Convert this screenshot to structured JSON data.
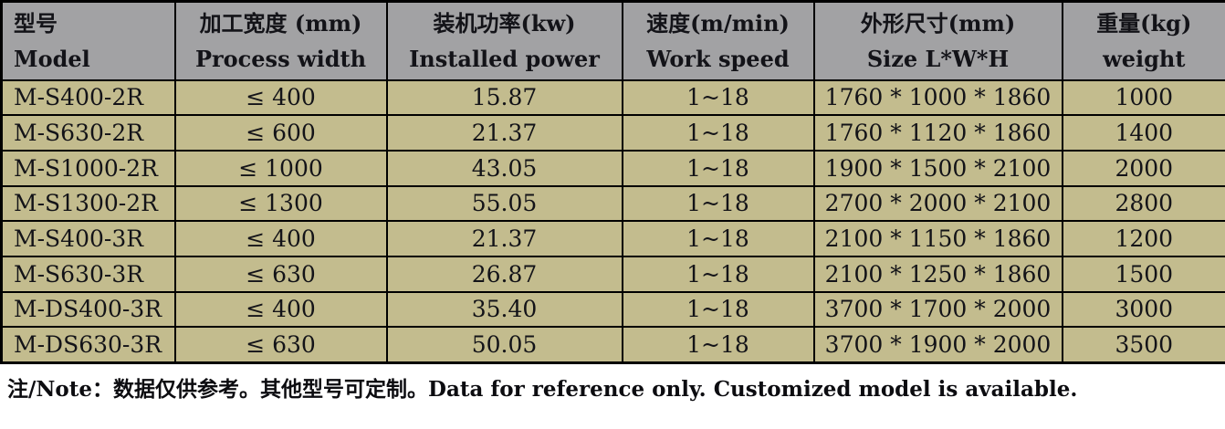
{
  "table": {
    "columns": [
      {
        "zh": "型号",
        "en": "Model"
      },
      {
        "zh": "加工宽度 (mm)",
        "en": "Process width"
      },
      {
        "zh": "装机功率(kw)",
        "en": "Installed power"
      },
      {
        "zh": "速度(m/min)",
        "en": "Work speed"
      },
      {
        "zh": "外形尺寸(mm)",
        "en": "Size L*W*H"
      },
      {
        "zh": "重量(kg)",
        "en": "weight"
      }
    ],
    "rows": [
      [
        "M-S400-2R",
        "≤ 400",
        "15.87",
        "1~18",
        "1760 * 1000 * 1860",
        "1000"
      ],
      [
        "M-S630-2R",
        "≤ 600",
        "21.37",
        "1~18",
        "1760 * 1120 * 1860",
        "1400"
      ],
      [
        "M-S1000-2R",
        "≤ 1000",
        "43.05",
        "1~18",
        "1900 * 1500 * 2100",
        "2000"
      ],
      [
        "M-S1300-2R",
        "≤ 1300",
        "55.05",
        "1~18",
        "2700 * 2000 * 2100",
        "2800"
      ],
      [
        "M-S400-3R",
        "≤ 400",
        "21.37",
        "1~18",
        "2100 * 1150 * 1860",
        "1200"
      ],
      [
        "M-S630-3R",
        "≤ 630",
        "26.87",
        "1~18",
        "2100 * 1250 * 1860",
        "1500"
      ],
      [
        "M-DS400-3R",
        "≤ 400",
        "35.40",
        "1~18",
        "3700 * 1700 * 2000",
        "3000"
      ],
      [
        "M-DS630-3R",
        "≤ 630",
        "50.05",
        "1~18",
        "3700 * 1900 * 2000",
        "3500"
      ]
    ],
    "note": "注/Note：数据仅供参考。其他型号可定制。Data for reference only. Customized model is available."
  },
  "colors": {
    "header_bg": "#a2a2a4",
    "row_bg": "#c3bc8e",
    "border": "#000000",
    "text": "#131318"
  }
}
